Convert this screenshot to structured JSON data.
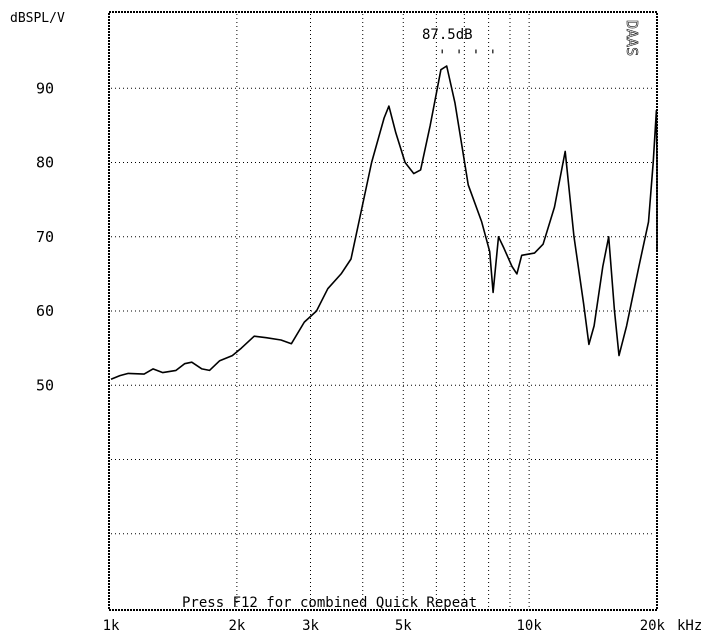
{
  "chart_data": {
    "type": "line",
    "title": "",
    "ylabel": "dBSPL/V",
    "xunit": "kHz",
    "xscale": "log",
    "xlim": [
      1000,
      20000
    ],
    "ylim": [
      20,
      100
    ],
    "yticks": [
      {
        "value": 90,
        "label": "90"
      },
      {
        "value": 80,
        "label": "80"
      },
      {
        "value": 70,
        "label": "70"
      },
      {
        "value": 60,
        "label": "60"
      },
      {
        "value": 50,
        "label": "50"
      }
    ],
    "ygrid": [
      90,
      80,
      70,
      60,
      50,
      40,
      30
    ],
    "xticks": [
      {
        "value": 1000,
        "label": "1k"
      },
      {
        "value": 2000,
        "label": "2k"
      },
      {
        "value": 3000,
        "label": "3k"
      },
      {
        "value": 5000,
        "label": "5k"
      },
      {
        "value": 10000,
        "label": "10k"
      },
      {
        "value": 20000,
        "label": "20k"
      }
    ],
    "xgrid": [
      2000,
      3000,
      4000,
      5000,
      6000,
      7000,
      8000,
      9000,
      10000
    ],
    "grid": true,
    "annotation": "87.5dB",
    "side_label": "DAAS",
    "footer_note": "Press F12 for combined Quick Repeat",
    "series": [
      {
        "values": [
          [
            1000,
            50.8
          ],
          [
            1050,
            51.3
          ],
          [
            1100,
            51.6
          ],
          [
            1200,
            51.5
          ],
          [
            1260,
            52.2
          ],
          [
            1330,
            51.7
          ],
          [
            1430,
            52.0
          ],
          [
            1500,
            52.9
          ],
          [
            1560,
            53.1
          ],
          [
            1650,
            52.2
          ],
          [
            1720,
            52.0
          ],
          [
            1820,
            53.3
          ],
          [
            1950,
            54.0
          ],
          [
            2050,
            55.0
          ],
          [
            2200,
            56.6
          ],
          [
            2350,
            56.4
          ],
          [
            2550,
            56.1
          ],
          [
            2700,
            55.6
          ],
          [
            2900,
            58.5
          ],
          [
            3100,
            60.0
          ],
          [
            3300,
            63.0
          ],
          [
            3550,
            65.0
          ],
          [
            3750,
            67.0
          ],
          [
            3950,
            73.0
          ],
          [
            4200,
            80.0
          ],
          [
            4500,
            86.0
          ],
          [
            4620,
            87.6
          ],
          [
            4800,
            84.0
          ],
          [
            5050,
            80.0
          ],
          [
            5300,
            78.5
          ],
          [
            5500,
            79.0
          ],
          [
            5800,
            85.0
          ],
          [
            6150,
            92.5
          ],
          [
            6350,
            93.0
          ],
          [
            6650,
            88.0
          ],
          [
            7150,
            77.0
          ],
          [
            7700,
            72.0
          ],
          [
            8050,
            68.0
          ],
          [
            8200,
            62.5
          ],
          [
            8450,
            70.0
          ],
          [
            8700,
            68.5
          ],
          [
            9100,
            66.0
          ],
          [
            9350,
            65.0
          ],
          [
            9600,
            67.5
          ],
          [
            10300,
            67.8
          ],
          [
            10800,
            69.0
          ],
          [
            11500,
            74.0
          ],
          [
            12200,
            81.5
          ],
          [
            12800,
            70.0
          ],
          [
            13500,
            61.0
          ],
          [
            13900,
            55.5
          ],
          [
            14300,
            58.0
          ],
          [
            15000,
            66.0
          ],
          [
            15500,
            70.0
          ],
          [
            16000,
            60.0
          ],
          [
            16400,
            54.0
          ],
          [
            17100,
            58.0
          ],
          [
            18300,
            66.0
          ],
          [
            19300,
            72.0
          ],
          [
            19800,
            80.0
          ],
          [
            20150,
            87.0
          ],
          [
            20600,
            80.0
          ],
          [
            21200,
            68.0
          ]
        ]
      }
    ]
  }
}
